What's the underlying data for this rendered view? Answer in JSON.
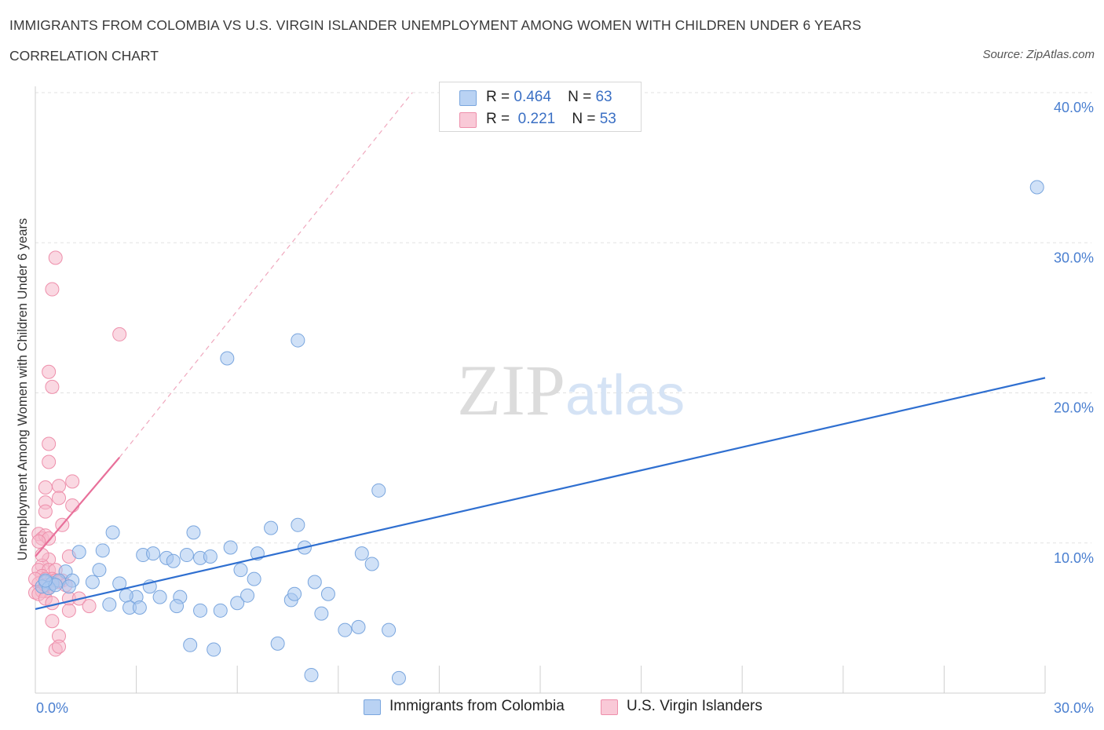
{
  "header": {
    "title": "IMMIGRANTS FROM COLOMBIA VS U.S. VIRGIN ISLANDER UNEMPLOYMENT AMONG WOMEN WITH CHILDREN UNDER 6 YEARS",
    "subtitle": "CORRELATION CHART",
    "source": "Source: ZipAtlas.com"
  },
  "watermark": {
    "zip": "ZIP",
    "atlas": "atlas"
  },
  "legend": {
    "r_label": "R =",
    "n_label": "N =",
    "series": [
      {
        "r": "0.464",
        "n": "63"
      },
      {
        "r": "0.221",
        "n": "53"
      }
    ]
  },
  "colors": {
    "blue_fill": "#a9c8f0",
    "blue_stroke": "#7aa6de",
    "blue_line": "#2f6fd0",
    "pink_fill": "#f6b8cb",
    "pink_stroke": "#ee8fab",
    "pink_line": "#e8709a",
    "tick_text": "#4a7fd0"
  },
  "chart_data": {
    "type": "scatter",
    "title": "IMMIGRANTS FROM COLOMBIA VS U.S. VIRGIN ISLANDER UNEMPLOYMENT AMONG WOMEN WITH CHILDREN UNDER 6 YEARS",
    "xlabel": "",
    "ylabel": "Unemployment Among Women with Children Under 6 years",
    "xlim": [
      0,
      30
    ],
    "ylim": [
      0,
      40
    ],
    "x_tick_labels": [
      "0.0%",
      "30.0%"
    ],
    "y_ticks": [
      10,
      20,
      30,
      40
    ],
    "y_tick_labels": [
      "10.0%",
      "20.0%",
      "30.0%",
      "40.0%"
    ],
    "grid": true,
    "series": [
      {
        "name": "Immigrants from Colombia",
        "color": "#a9c8f0",
        "trend": {
          "x": [
            0,
            30
          ],
          "y": [
            5.6,
            21.0
          ],
          "style": "solid"
        },
        "points": [
          [
            29.76,
            33.7
          ],
          [
            7.8,
            23.5
          ],
          [
            5.7,
            22.3
          ],
          [
            10.2,
            13.5
          ],
          [
            2.3,
            10.7
          ],
          [
            4.7,
            10.7
          ],
          [
            7.8,
            11.2
          ],
          [
            7.0,
            11.0
          ],
          [
            5.8,
            9.7
          ],
          [
            8.0,
            9.7
          ],
          [
            1.3,
            9.4
          ],
          [
            2.0,
            9.5
          ],
          [
            3.2,
            9.2
          ],
          [
            3.5,
            9.3
          ],
          [
            3.9,
            9.0
          ],
          [
            4.1,
            8.8
          ],
          [
            4.5,
            9.2
          ],
          [
            4.9,
            9.0
          ],
          [
            5.2,
            9.1
          ],
          [
            6.6,
            9.3
          ],
          [
            9.7,
            9.3
          ],
          [
            1.9,
            8.2
          ],
          [
            6.1,
            8.2
          ],
          [
            10.0,
            8.6
          ],
          [
            0.9,
            8.1
          ],
          [
            6.5,
            7.6
          ],
          [
            8.3,
            7.4
          ],
          [
            0.3,
            7.4
          ],
          [
            0.5,
            7.3
          ],
          [
            0.7,
            7.5
          ],
          [
            1.1,
            7.5
          ],
          [
            1.7,
            7.4
          ],
          [
            1.0,
            7.1
          ],
          [
            0.2,
            7.1
          ],
          [
            0.4,
            7.0
          ],
          [
            0.6,
            7.2
          ],
          [
            2.5,
            7.3
          ],
          [
            3.4,
            7.1
          ],
          [
            0.3,
            7.5
          ],
          [
            3.0,
            6.4
          ],
          [
            3.7,
            6.4
          ],
          [
            4.3,
            6.4
          ],
          [
            2.7,
            6.5
          ],
          [
            2.2,
            5.9
          ],
          [
            2.8,
            5.7
          ],
          [
            3.1,
            5.7
          ],
          [
            4.2,
            5.8
          ],
          [
            4.9,
            5.5
          ],
          [
            5.5,
            5.5
          ],
          [
            6.0,
            6.0
          ],
          [
            6.3,
            6.5
          ],
          [
            7.6,
            6.2
          ],
          [
            7.7,
            6.6
          ],
          [
            8.7,
            6.6
          ],
          [
            8.5,
            5.3
          ],
          [
            9.2,
            4.2
          ],
          [
            9.6,
            4.4
          ],
          [
            10.5,
            4.2
          ],
          [
            4.6,
            3.2
          ],
          [
            5.3,
            2.9
          ],
          [
            7.2,
            3.3
          ],
          [
            8.2,
            1.2
          ],
          [
            10.8,
            1.0
          ]
        ]
      },
      {
        "name": "U.S. Virgin Islanders",
        "color": "#f6b8cb",
        "trend": {
          "x": [
            0,
            2.5
          ],
          "y": [
            9.1,
            15.7
          ],
          "style": "solid",
          "extended": {
            "x": [
              2.5,
              11.2
            ],
            "y": [
              15.7,
              40.0
            ],
            "style": "dashed"
          }
        },
        "points": [
          [
            0.6,
            29.0
          ],
          [
            0.5,
            26.9
          ],
          [
            2.5,
            23.9
          ],
          [
            0.4,
            21.4
          ],
          [
            0.5,
            20.4
          ],
          [
            0.4,
            16.6
          ],
          [
            0.4,
            15.4
          ],
          [
            1.1,
            14.1
          ],
          [
            0.3,
            13.7
          ],
          [
            0.7,
            13.8
          ],
          [
            0.7,
            13.0
          ],
          [
            0.3,
            12.7
          ],
          [
            1.1,
            12.5
          ],
          [
            0.3,
            12.1
          ],
          [
            0.8,
            11.2
          ],
          [
            0.1,
            10.6
          ],
          [
            0.2,
            10.3
          ],
          [
            0.3,
            10.5
          ],
          [
            0.4,
            10.3
          ],
          [
            0.1,
            10.1
          ],
          [
            1.0,
            9.1
          ],
          [
            0.4,
            8.9
          ],
          [
            0.2,
            8.5
          ],
          [
            0.1,
            8.2
          ],
          [
            0.4,
            8.2
          ],
          [
            0.6,
            8.2
          ],
          [
            0.2,
            7.8
          ],
          [
            0.3,
            7.6
          ],
          [
            0.5,
            7.6
          ],
          [
            0.6,
            7.5
          ],
          [
            0.8,
            7.5
          ],
          [
            0.1,
            7.3
          ],
          [
            0.2,
            7.1
          ],
          [
            0.4,
            7.0
          ],
          [
            0.3,
            6.8
          ],
          [
            0.0,
            6.7
          ],
          [
            0.2,
            6.8
          ],
          [
            0.7,
            7.4
          ],
          [
            0.9,
            7.2
          ],
          [
            0.1,
            6.6
          ],
          [
            0.3,
            6.3
          ],
          [
            1.0,
            6.3
          ],
          [
            1.3,
            6.3
          ],
          [
            0.5,
            6.0
          ],
          [
            1.6,
            5.8
          ],
          [
            1.0,
            5.5
          ],
          [
            0.5,
            4.8
          ],
          [
            0.7,
            3.8
          ],
          [
            0.6,
            2.9
          ],
          [
            0.7,
            3.1
          ],
          [
            0.0,
            7.6
          ],
          [
            0.3,
            7.2
          ],
          [
            0.2,
            9.2
          ]
        ]
      }
    ]
  }
}
